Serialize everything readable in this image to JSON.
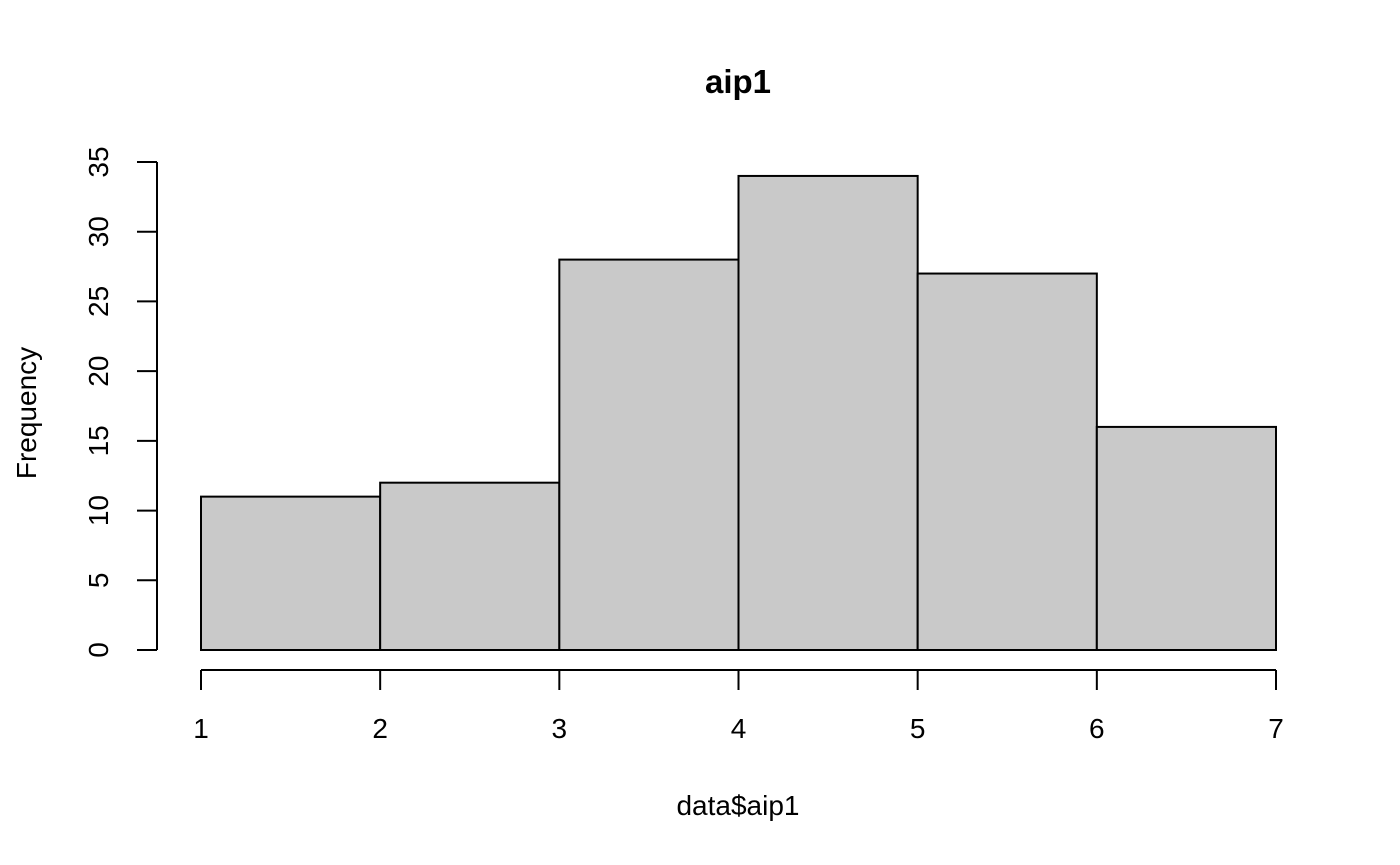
{
  "chart_data": {
    "type": "bar",
    "subtype": "histogram",
    "title": "aip1",
    "xlabel": "data$aip1",
    "ylabel": "Frequency",
    "bins": [
      {
        "start": 1,
        "end": 2,
        "count": 11
      },
      {
        "start": 2,
        "end": 3,
        "count": 12
      },
      {
        "start": 3,
        "end": 4,
        "count": 28
      },
      {
        "start": 4,
        "end": 5,
        "count": 34
      },
      {
        "start": 5,
        "end": 6,
        "count": 27
      },
      {
        "start": 6,
        "end": 7,
        "count": 16
      }
    ],
    "xlim": [
      1,
      7
    ],
    "ylim": [
      0,
      35
    ],
    "x_ticks": [
      1,
      2,
      3,
      4,
      5,
      6,
      7
    ],
    "y_ticks": [
      0,
      5,
      10,
      15,
      20,
      25,
      30,
      35
    ],
    "grid": false,
    "legend": "none",
    "bar_fill": "#c9c9c9",
    "bar_stroke": "#000000"
  }
}
